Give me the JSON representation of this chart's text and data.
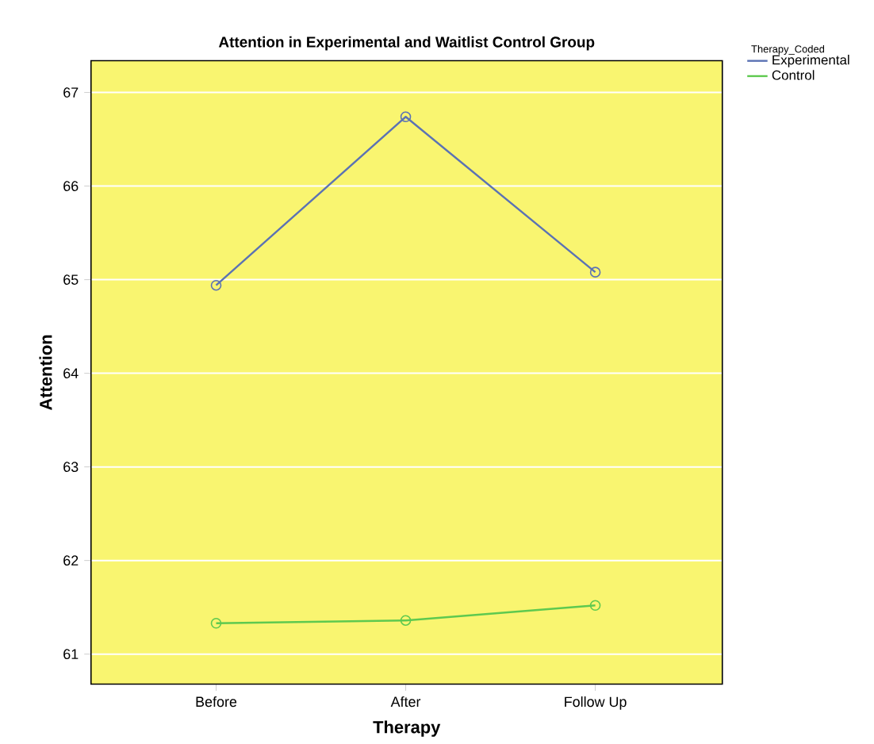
{
  "chart_data": {
    "type": "line",
    "title": "Attention in Experimental and Waitlist Control Group",
    "xlabel": "Therapy",
    "ylabel": "Attention",
    "legend_title": "Therapy_Coded",
    "categories": [
      "Before",
      "After",
      "Follow Up"
    ],
    "series": [
      {
        "name": "Experimental",
        "color": "#5b72b4",
        "values": [
          64.94,
          66.74,
          65.08
        ]
      },
      {
        "name": "Control",
        "color": "#5ec94f",
        "values": [
          61.33,
          61.36,
          61.52
        ]
      }
    ],
    "ylim": [
      60.68,
      67.34
    ],
    "yticks": [
      61,
      62,
      63,
      64,
      65,
      66,
      67
    ],
    "grid": "y",
    "legend": "top right",
    "marker": "circle",
    "line_style": "solid"
  }
}
